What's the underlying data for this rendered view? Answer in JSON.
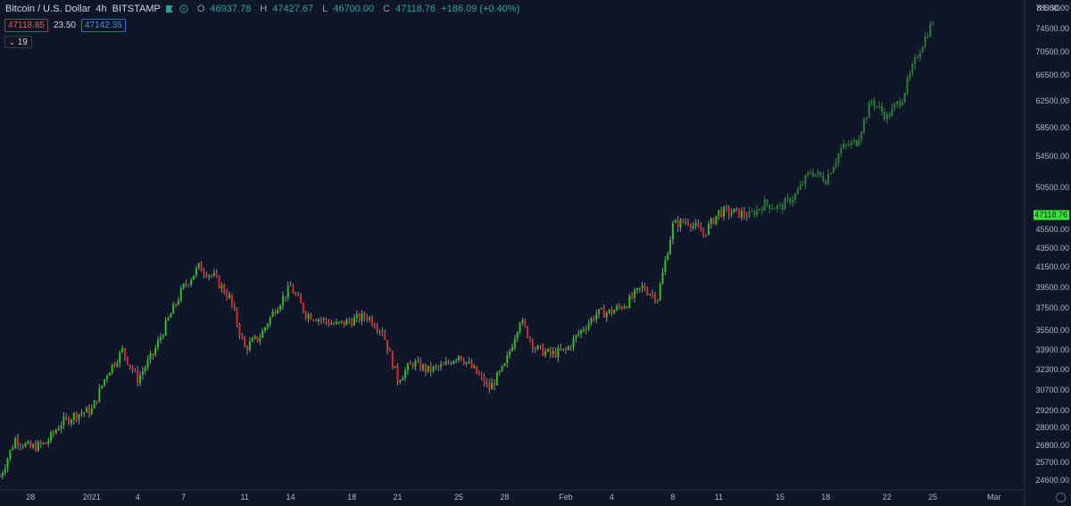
{
  "legend": {
    "symbol": "Bitcoin / U.S. Dollar",
    "interval": "4h",
    "exchange": "BITSTAMP",
    "icons": [
      "flag-icon",
      "status-dot-icon"
    ],
    "open_label": "O",
    "open": "46937.78",
    "high_label": "H",
    "high": "47427.67",
    "low_label": "L",
    "low": "46700.00",
    "close_label": "C",
    "close": "47118.76",
    "change": "+186.09 (+0.40%)"
  },
  "quote": {
    "bid": "47118.85",
    "spread": "23.50",
    "ask": "47142.35"
  },
  "indicator_toggle": {
    "icon": "chevron-down-icon",
    "label": "19"
  },
  "colors": {
    "background": "#0f1628",
    "up": "#26c318",
    "down": "#e0232a",
    "projection": "#2f7a3a",
    "wick": "#8c8c8c",
    "last_price": "#39e639"
  },
  "chart_data": {
    "type": "candlestick",
    "title": "",
    "y_scale": "log",
    "ylim": [
      24000,
      80000
    ],
    "xlim": [
      "2020-12-26",
      "2021-03-03"
    ],
    "currency": "USD",
    "currency_short": "8 USD",
    "y_ticks": [
      "78500.00",
      "74500.00",
      "70500.00",
      "66500.00",
      "62500.00",
      "58500.00",
      "54500.00",
      "50500.00",
      "47118.76",
      "45500.00",
      "43500.00",
      "41500.00",
      "39500.00",
      "37500.00",
      "35500.00",
      "33900.00",
      "32300.00",
      "30700.00",
      "29200.00",
      "28000.00",
      "26800.00",
      "25700.00",
      "24600.00"
    ],
    "y_tick_values": [
      78500,
      74500,
      70500,
      66500,
      62500,
      58500,
      54500,
      50500,
      null,
      45500,
      43500,
      41500,
      39500,
      37500,
      35500,
      33900,
      32300,
      30700,
      29200,
      28000,
      26800,
      25700,
      24600
    ],
    "x_ticks": [
      "28",
      "2021",
      "4",
      "7",
      "11",
      "14",
      "18",
      "21",
      "25",
      "28",
      "Feb",
      "4",
      "8",
      "11",
      "15",
      "18",
      "22",
      "25",
      "Mar"
    ],
    "x_tick_dates": [
      "2020-12-28",
      "2021-01-01",
      "2021-01-04",
      "2021-01-07",
      "2021-01-11",
      "2021-01-14",
      "2021-01-18",
      "2021-01-21",
      "2021-01-25",
      "2021-01-28",
      "2021-02-01",
      "2021-02-04",
      "2021-02-08",
      "2021-02-11",
      "2021-02-15",
      "2021-02-18",
      "2021-02-22",
      "2021-02-25",
      "2021-03-01"
    ],
    "last_price": "47118.76",
    "price_path": [
      {
        "date": "2020-12-26",
        "price": 24800
      },
      {
        "date": "2020-12-27",
        "price": 27200
      },
      {
        "date": "2020-12-28",
        "price": 26600
      },
      {
        "date": "2020-12-29",
        "price": 26900
      },
      {
        "date": "2020-12-30",
        "price": 28300
      },
      {
        "date": "2020-12-31",
        "price": 28900
      },
      {
        "date": "2021-01-01",
        "price": 29200
      },
      {
        "date": "2021-01-02",
        "price": 32000
      },
      {
        "date": "2021-01-03",
        "price": 33800
      },
      {
        "date": "2021-01-04",
        "price": 31500
      },
      {
        "date": "2021-01-05",
        "price": 33500
      },
      {
        "date": "2021-01-06",
        "price": 36500
      },
      {
        "date": "2021-01-07",
        "price": 39500
      },
      {
        "date": "2021-01-08",
        "price": 41500
      },
      {
        "date": "2021-01-09",
        "price": 40500
      },
      {
        "date": "2021-01-10",
        "price": 38500
      },
      {
        "date": "2021-01-11",
        "price": 34000
      },
      {
        "date": "2021-01-12",
        "price": 35000
      },
      {
        "date": "2021-01-13",
        "price": 37500
      },
      {
        "date": "2021-01-14",
        "price": 39500
      },
      {
        "date": "2021-01-15",
        "price": 37000
      },
      {
        "date": "2021-01-16",
        "price": 36500
      },
      {
        "date": "2021-01-17",
        "price": 36000
      },
      {
        "date": "2021-01-18",
        "price": 36400
      },
      {
        "date": "2021-01-19",
        "price": 36800
      },
      {
        "date": "2021-01-20",
        "price": 35500
      },
      {
        "date": "2021-01-21",
        "price": 31500
      },
      {
        "date": "2021-01-22",
        "price": 32800
      },
      {
        "date": "2021-01-23",
        "price": 32200
      },
      {
        "date": "2021-01-24",
        "price": 32500
      },
      {
        "date": "2021-01-25",
        "price": 33500
      },
      {
        "date": "2021-01-26",
        "price": 32200
      },
      {
        "date": "2021-01-27",
        "price": 30800
      },
      {
        "date": "2021-01-28",
        "price": 32500
      },
      {
        "date": "2021-01-29",
        "price": 36500
      },
      {
        "date": "2021-01-30",
        "price": 34000
      },
      {
        "date": "2021-01-31",
        "price": 33500
      },
      {
        "date": "2021-02-01",
        "price": 33800
      },
      {
        "date": "2021-02-02",
        "price": 35500
      },
      {
        "date": "2021-02-03",
        "price": 37000
      },
      {
        "date": "2021-02-04",
        "price": 37200
      },
      {
        "date": "2021-02-05",
        "price": 38000
      },
      {
        "date": "2021-02-06",
        "price": 39500
      },
      {
        "date": "2021-02-07",
        "price": 38500
      },
      {
        "date": "2021-02-08",
        "price": 46000
      },
      {
        "date": "2021-02-09",
        "price": 46500
      },
      {
        "date": "2021-02-10",
        "price": 45000
      },
      {
        "date": "2021-02-11",
        "price": 47500
      },
      {
        "date": "2021-02-12",
        "price": 47500
      },
      {
        "date": "2021-02-13",
        "price": 47100
      },
      {
        "date": "2021-02-14",
        "price": 48500
      },
      {
        "date": "2021-02-15",
        "price": 48000
      },
      {
        "date": "2021-02-16",
        "price": 49500
      },
      {
        "date": "2021-02-17",
        "price": 52500
      },
      {
        "date": "2021-02-18",
        "price": 51500
      },
      {
        "date": "2021-02-19",
        "price": 55500
      },
      {
        "date": "2021-02-20",
        "price": 56500
      },
      {
        "date": "2021-02-21",
        "price": 62500
      },
      {
        "date": "2021-02-22",
        "price": 60000
      },
      {
        "date": "2021-02-23",
        "price": 63000
      },
      {
        "date": "2021-02-24",
        "price": 70000
      },
      {
        "date": "2021-02-25",
        "price": 76000
      }
    ],
    "projection_start": "2021-02-13"
  }
}
